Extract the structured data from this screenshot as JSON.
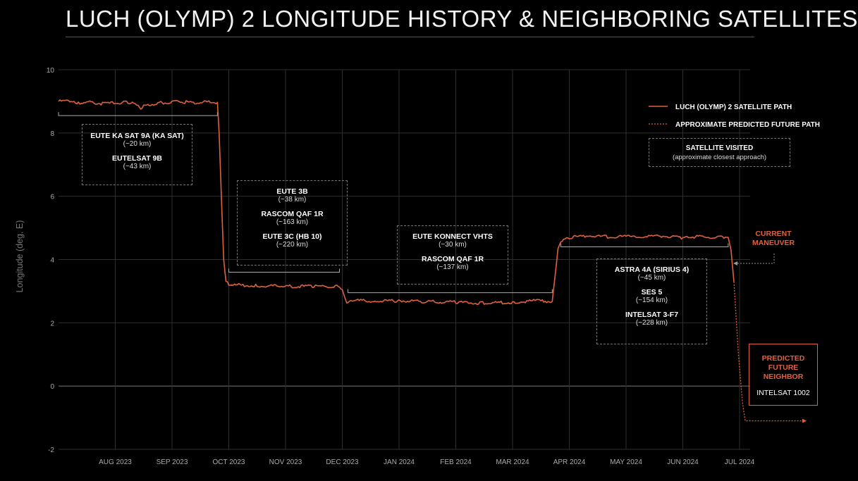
{
  "title": "LUCH (OLYMP) 2 LONGITUDE HISTORY & NEIGHBORING SATELLITES",
  "colors": {
    "path": "#e0603f",
    "grid": "#2e2e2e",
    "zero_line": "#6a6a6a",
    "bracket": "#aaaaaa",
    "accent": "#e0603f"
  },
  "legend": {
    "path_label": "LUCH (OLYMP) 2 SATELLITE PATH",
    "predicted_label": "APPROXIMATE PREDICTED FUTURE PATH",
    "visited_label": "SATELLITE VISITED",
    "visited_sub": "(approximate closest approach)"
  },
  "annotations": {
    "current_maneuver": [
      "CURRENT",
      "MANEUVER"
    ],
    "predicted_neighbor_title": [
      "PREDICTED",
      "FUTURE",
      "NEIGHBOR"
    ],
    "predicted_neighbor_name": "INTELSAT 1002"
  },
  "groups": [
    {
      "satellites": [
        {
          "name": "EUTE KA SAT 9A (KA SAT)",
          "dist": "(~20 km)"
        },
        {
          "name": "EUTELSAT 9B",
          "dist": "(~43 km)"
        }
      ]
    },
    {
      "satellites": [
        {
          "name": "EUTE 3B",
          "dist": "(~38 km)"
        },
        {
          "name": "RASCOM QAF 1R",
          "dist": "(~163 km)"
        },
        {
          "name": "EUTE 3C (HB 10)",
          "dist": "(~220 km)"
        }
      ]
    },
    {
      "satellites": [
        {
          "name": "EUTE KONNECT VHTS",
          "dist": "(~30 km)"
        },
        {
          "name": "RASCOM QAF 1R",
          "dist": "(~137 km)"
        }
      ]
    },
    {
      "satellites": [
        {
          "name": "ASTRA 4A (SIRIUS 4)",
          "dist": "(~45 km)"
        },
        {
          "name": "SES 5",
          "dist": "(~154 km)"
        },
        {
          "name": "INTELSAT 3-F7",
          "dist": "(~228 km)"
        }
      ]
    }
  ],
  "chart_data": {
    "type": "line",
    "title": "LUCH (OLYMP) 2 LONGITUDE HISTORY & NEIGHBORING SATELLITES",
    "xlabel": "",
    "ylabel": "Longitude (deg. E)",
    "ylim": [
      -2,
      10
    ],
    "xlim_months": [
      0,
      12.3
    ],
    "yticks": [
      -2,
      0,
      2,
      4,
      6,
      8,
      10
    ],
    "x_ticks": [
      {
        "label": "AUG 2023",
        "m": 1
      },
      {
        "label": "SEP 2023",
        "m": 2
      },
      {
        "label": "OCT 2023",
        "m": 3
      },
      {
        "label": "NOV 2023",
        "m": 4
      },
      {
        "label": "DEC 2023",
        "m": 5
      },
      {
        "label": "JAN 2024",
        "m": 6
      },
      {
        "label": "FEB 2024",
        "m": 7
      },
      {
        "label": "MAR 2024",
        "m": 8
      },
      {
        "label": "APR 2024",
        "m": 9
      },
      {
        "label": "MAY 2024",
        "m": 10
      },
      {
        "label": "JUN 2024",
        "m": 11
      },
      {
        "label": "JUL 2024",
        "m": 12
      }
    ],
    "series": [
      {
        "name": "LUCH (OLYMP) 2 SATELLITE PATH",
        "points": [
          [
            0.0,
            9.0
          ],
          [
            0.25,
            9.02
          ],
          [
            0.35,
            8.95
          ],
          [
            0.5,
            8.98
          ],
          [
            0.75,
            8.93
          ],
          [
            1.0,
            8.95
          ],
          [
            1.2,
            8.97
          ],
          [
            1.3,
            8.93
          ],
          [
            1.45,
            8.8
          ],
          [
            1.6,
            8.9
          ],
          [
            1.8,
            8.95
          ],
          [
            2.0,
            8.98
          ],
          [
            2.2,
            8.98
          ],
          [
            2.4,
            8.95
          ],
          [
            2.6,
            8.98
          ],
          [
            2.8,
            8.97
          ],
          [
            2.83,
            8.0
          ],
          [
            2.87,
            6.0
          ],
          [
            2.91,
            4.0
          ],
          [
            2.95,
            3.3
          ],
          [
            3.0,
            3.2
          ],
          [
            3.5,
            3.17
          ],
          [
            4.0,
            3.15
          ],
          [
            4.5,
            3.15
          ],
          [
            4.95,
            3.15
          ],
          [
            5.0,
            3.05
          ],
          [
            5.08,
            2.6
          ],
          [
            5.2,
            2.7
          ],
          [
            5.6,
            2.68
          ],
          [
            6.0,
            2.7
          ],
          [
            6.5,
            2.67
          ],
          [
            7.0,
            2.65
          ],
          [
            7.5,
            2.62
          ],
          [
            8.0,
            2.65
          ],
          [
            8.4,
            2.7
          ],
          [
            8.7,
            2.68
          ],
          [
            8.75,
            3.5
          ],
          [
            8.8,
            4.3
          ],
          [
            8.85,
            4.55
          ],
          [
            9.0,
            4.7
          ],
          [
            9.3,
            4.75
          ],
          [
            9.6,
            4.72
          ],
          [
            10.0,
            4.73
          ],
          [
            10.3,
            4.72
          ],
          [
            10.6,
            4.75
          ],
          [
            11.0,
            4.68
          ],
          [
            11.2,
            4.72
          ],
          [
            11.5,
            4.7
          ],
          [
            11.7,
            4.72
          ],
          [
            11.8,
            4.7
          ],
          [
            11.85,
            4.3
          ],
          [
            11.9,
            3.3
          ]
        ]
      },
      {
        "name": "APPROXIMATE PREDICTED FUTURE PATH",
        "points": [
          [
            11.9,
            3.3
          ],
          [
            11.98,
            1.0
          ],
          [
            12.05,
            -0.5
          ],
          [
            12.1,
            -1.1
          ],
          [
            13.3,
            -1.1
          ]
        ]
      }
    ],
    "visit_ranges": [
      [
        0.0,
        2.8
      ],
      [
        3.0,
        4.95
      ],
      [
        5.1,
        8.7
      ],
      [
        8.85,
        11.8
      ]
    ]
  }
}
